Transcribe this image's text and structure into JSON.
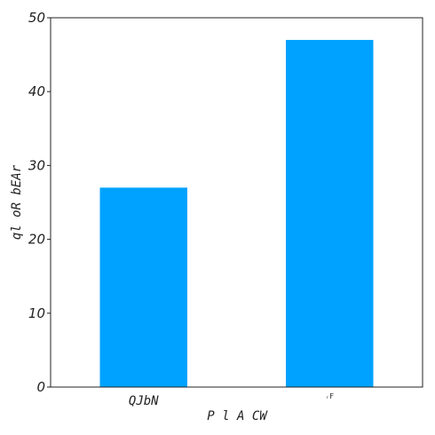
{
  "chart_data": {
    "type": "bar",
    "categories": [
      "QJbN",
      "ᵣF"
    ],
    "values": [
      27,
      47
    ],
    "title": "",
    "xlabel": "P l A CW",
    "ylabel": "ql oR bEAr",
    "ylim": [
      0,
      50
    ],
    "yticks": [
      0,
      10,
      20,
      30,
      40,
      50
    ],
    "grid": false,
    "bar_color": "#00a2ff"
  }
}
